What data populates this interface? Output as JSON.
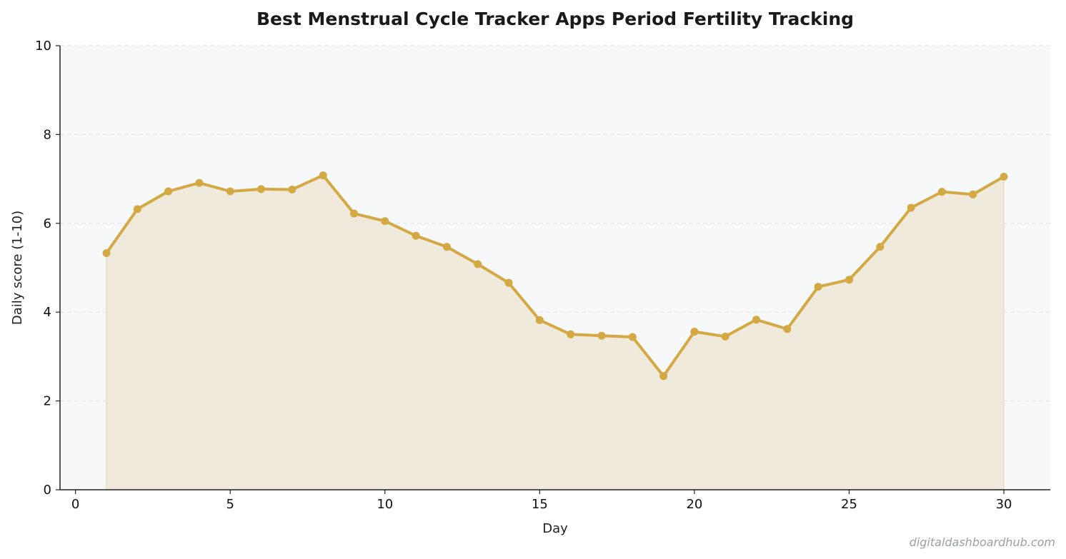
{
  "chart_data": {
    "type": "line",
    "title": "Best Menstrual Cycle Tracker Apps  Period  Fertility Tracking",
    "xlabel": "Day",
    "ylabel": "Daily score (1-10)",
    "xlim": [
      -0.5,
      31.5
    ],
    "ylim": [
      0,
      10
    ],
    "x_ticks": [
      0,
      5,
      10,
      15,
      20,
      25,
      30
    ],
    "y_ticks": [
      0,
      2,
      4,
      6,
      8,
      10
    ],
    "grid": "horizontal dashed",
    "area_fill": true,
    "series": [
      {
        "x": [
          1,
          2,
          3,
          4,
          5,
          6,
          7,
          8,
          9,
          10,
          11,
          12,
          13,
          14,
          15,
          16,
          17,
          18,
          19,
          20,
          21,
          22,
          23,
          24,
          25,
          26,
          27,
          28,
          29,
          30
        ],
        "y": [
          5.33,
          6.32,
          6.72,
          6.91,
          6.72,
          6.77,
          6.76,
          7.08,
          6.22,
          6.05,
          5.72,
          5.47,
          5.08,
          4.66,
          3.82,
          3.5,
          3.47,
          3.44,
          2.56,
          3.56,
          3.45,
          3.83,
          3.62,
          4.57,
          4.73,
          5.47,
          6.35,
          6.71,
          6.65,
          7.05
        ]
      }
    ],
    "colors": {
      "line": "#D4A843",
      "fill": "#F0EADC",
      "plot_background": "#F7F8FA",
      "grid": "#E2E4E8",
      "axis": "#222222"
    }
  },
  "watermark": "digitaldashboardhub.com"
}
